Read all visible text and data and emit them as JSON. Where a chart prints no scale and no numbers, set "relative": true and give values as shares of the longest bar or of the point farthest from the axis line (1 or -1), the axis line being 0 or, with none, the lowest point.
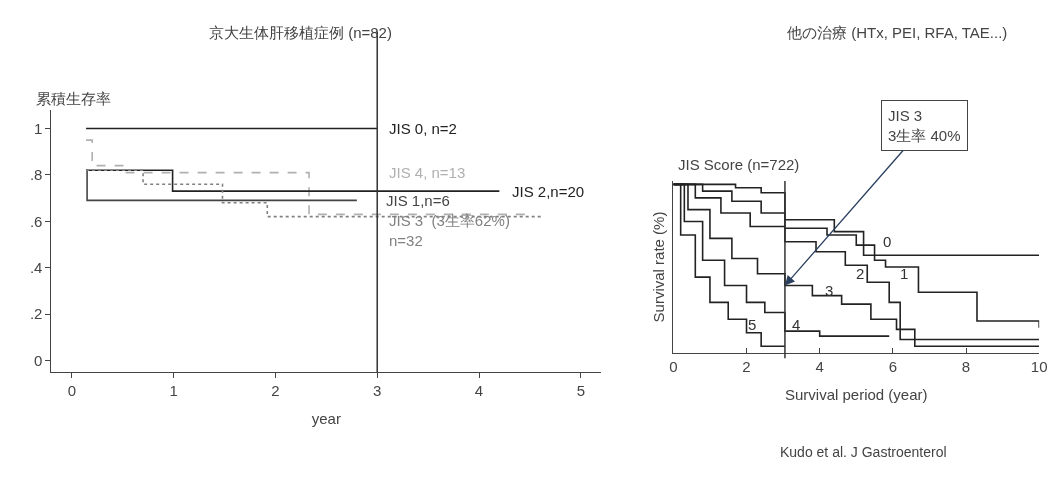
{
  "chart_data": [
    {
      "type": "step",
      "title": "京大生体肝移植症例 (n=82)",
      "xlabel": "year",
      "ylabel": "累積生存率",
      "series": [
        {
          "name": "JIS 0, n=2",
          "color": "#222222",
          "line_style": "solid",
          "x": [
            0.14,
            3.0
          ],
          "values": [
            1,
            1
          ]
        },
        {
          "name": "JIS 4, n=13",
          "color": "#b0b0b0",
          "line_style": "dashed",
          "x": [
            0.14,
            0.2,
            0.5,
            2.33,
            4.47
          ],
          "values": [
            0.95,
            0.84,
            0.81,
            0.63,
            0.63
          ]
        },
        {
          "name": "JIS 2,n=20",
          "color": "#222222",
          "line_style": "solid",
          "x": [
            0.14,
            0.99,
            4.2
          ],
          "values": [
            0.82,
            0.73,
            0.73
          ]
        },
        {
          "name": "JIS 1,n=6",
          "color": "#444444",
          "line_style": "solid",
          "x": [
            0.14,
            0.15,
            2.8
          ],
          "values": [
            0.82,
            0.69,
            0.69
          ]
        },
        {
          "name": "JIS 3  (3生率62%)\nn=32",
          "color": "#808080",
          "line_style": "dotted",
          "x": [
            0.14,
            0.7,
            1.48,
            1.92,
            4.62
          ],
          "values": [
            0.82,
            0.76,
            0.68,
            0.62,
            0.62
          ]
        }
      ],
      "xlim": [
        -0.2,
        5.2
      ],
      "xticks": [
        0,
        1,
        2,
        3,
        4,
        5
      ],
      "ylim": [
        -0.05,
        1.08
      ],
      "yticks": [
        {
          "value": 0,
          "label": "0"
        },
        {
          "value": 0.2,
          "label": ".2"
        },
        {
          "value": 0.4,
          "label": ".4"
        },
        {
          "value": 0.6,
          "label": ".6"
        },
        {
          "value": 0.8,
          "label": ".8"
        },
        {
          "value": 1,
          "label": "1"
        }
      ],
      "ref_lines": [
        {
          "axis": "x",
          "value": 3
        }
      ],
      "marker": "none"
    },
    {
      "type": "step",
      "title": "他の治療 (HTx, PEI, RFA, TAE...)",
      "subtitle": "JIS Score (n=722)",
      "xlabel": "Survival period (year)",
      "ylabel": "Survival rate (%)",
      "relative": true,
      "series": [
        {
          "name": "0",
          "color": "#222222",
          "x": [
            0,
            1.7,
            2.4,
            3.05,
            4.4,
            5.2,
            10
          ],
          "values": [
            1,
            0.98,
            0.95,
            0.79,
            0.72,
            0.58,
            0.58
          ]
        },
        {
          "name": "1",
          "color": "#222222",
          "x": [
            0,
            0.8,
            1.6,
            2.4,
            3.05,
            4.2,
            5.0,
            5.5,
            5.8,
            6.7,
            8.3,
            10
          ],
          "values": [
            1,
            0.96,
            0.9,
            0.83,
            0.74,
            0.7,
            0.64,
            0.55,
            0.51,
            0.36,
            0.19,
            0.15
          ]
        },
        {
          "name": "2",
          "color": "#222222",
          "x": [
            0,
            0.6,
            1.3,
            2.1,
            3.05,
            3.9,
            4.7,
            5.3,
            5.9,
            6.2,
            10
          ],
          "values": [
            1,
            0.92,
            0.83,
            0.75,
            0.66,
            0.6,
            0.52,
            0.42,
            0.3,
            0.08,
            0.08
          ]
        },
        {
          "name": "3",
          "color": "#222222",
          "x": [
            0,
            0.4,
            1.0,
            1.6,
            2.3,
            3.05,
            3.8,
            4.6,
            5.4,
            6.1,
            6.6,
            10
          ],
          "values": [
            1,
            0.85,
            0.68,
            0.56,
            0.47,
            0.4,
            0.34,
            0.29,
            0.2,
            0.14,
            0.04,
            0.04
          ]
        },
        {
          "name": "4",
          "color": "#222222",
          "x": [
            0,
            0.3,
            0.8,
            1.4,
            2.0,
            2.5,
            3.05,
            4.0,
            5.9
          ],
          "values": [
            1,
            0.78,
            0.55,
            0.4,
            0.3,
            0.24,
            0.13,
            0.1,
            0.1
          ]
        },
        {
          "name": "5",
          "color": "#222222",
          "x": [
            0,
            0.2,
            0.6,
            1.0,
            1.5,
            2.0,
            2.4,
            3.05
          ],
          "values": [
            1,
            0.7,
            0.45,
            0.3,
            0.2,
            0.12,
            0.04,
            0.04
          ]
        }
      ],
      "xlim": [
        0,
        10
      ],
      "xticks": [
        0,
        2,
        4,
        6,
        8,
        10
      ],
      "ref_lines": [
        {
          "axis": "x",
          "value": 3.05
        }
      ],
      "annotations": [
        {
          "text": "JIS 3\n3生率 40%",
          "x": 3.05,
          "y": 0.4
        },
        "Kudo et al. J Gastroenterol"
      ],
      "marker": "none"
    }
  ]
}
